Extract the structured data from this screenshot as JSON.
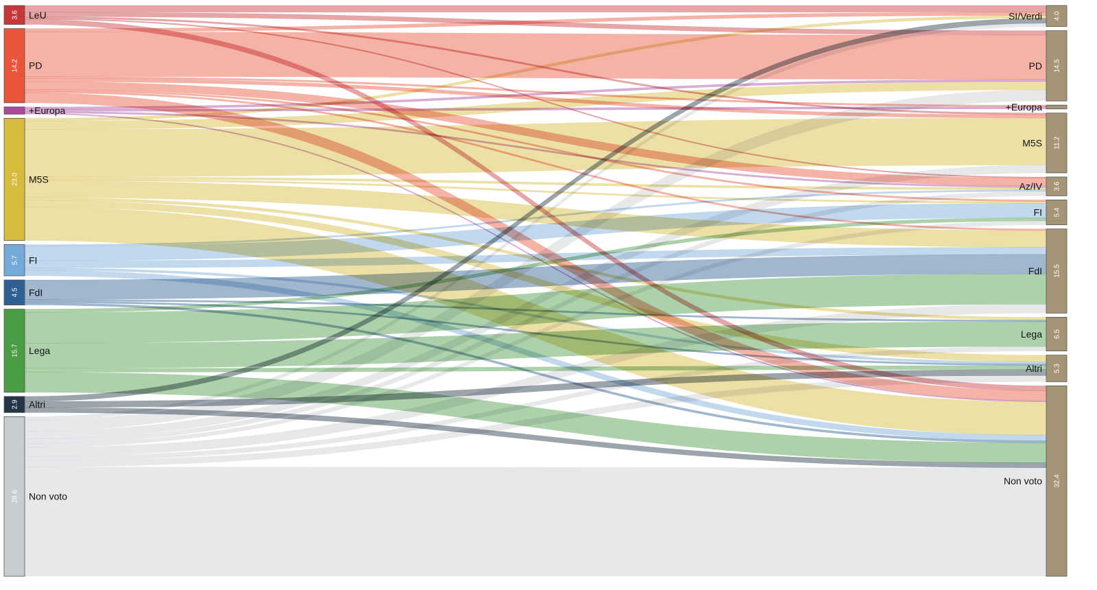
{
  "chart_data": {
    "type": "sankey",
    "left_nodes": [
      {
        "id": "LeU",
        "label": "LeU",
        "value": "3.6",
        "color": "#c8383a"
      },
      {
        "id": "PD",
        "label": "PD",
        "value": "14.2",
        "color": "#e8553a"
      },
      {
        "id": "+Europa",
        "label": "+Europa",
        "value": "",
        "color": "#a94a9e"
      },
      {
        "id": "M5S",
        "label": "M5S",
        "value": "23.0",
        "color": "#d6bb3c"
      },
      {
        "id": "FI",
        "label": "FI",
        "value": "5.7",
        "color": "#75a9d8"
      },
      {
        "id": "FdI",
        "label": "FdI",
        "value": "4.5",
        "color": "#2f5f93"
      },
      {
        "id": "Lega",
        "label": "Lega",
        "value": "15.7",
        "color": "#4a9c45"
      },
      {
        "id": "Altri",
        "label": "Altri",
        "value": "2.9",
        "color": "#233546"
      },
      {
        "id": "Non voto",
        "label": "Non voto",
        "value": "28.6",
        "color": "#c9cdd0"
      }
    ],
    "right_nodes": [
      {
        "id": "SI/Verdi",
        "label": "SI/Verdi",
        "value": "4.0",
        "color": "#a39575"
      },
      {
        "id": "PD",
        "label": "PD",
        "value": "14.5",
        "color": "#a39575"
      },
      {
        "id": "+Europa",
        "label": "+Europa",
        "value": "",
        "color": "#a39575"
      },
      {
        "id": "M5S",
        "label": "M5S",
        "value": "11.2",
        "color": "#a39575"
      },
      {
        "id": "Az/IV",
        "label": "Az/IV",
        "value": "3.6",
        "color": "#a39575"
      },
      {
        "id": "FI",
        "label": "FI",
        "value": "5.4",
        "color": "#a39575"
      },
      {
        "id": "FdI",
        "label": "FdI",
        "value": "15.5",
        "color": "#a39575"
      },
      {
        "id": "Lega",
        "label": "Lega",
        "value": "6.5",
        "color": "#a39575"
      },
      {
        "id": "Altri",
        "label": "Altri",
        "value": "5.3",
        "color": "#a39575"
      },
      {
        "id": "Non voto",
        "label": "Non voto",
        "value": "32.4",
        "color": "#a39575"
      }
    ],
    "flows": [
      {
        "from": "LeU",
        "to": "SI/Verdi",
        "value": 1.2
      },
      {
        "from": "LeU",
        "to": "PD",
        "value": 0.8
      },
      {
        "from": "LeU",
        "to": "M5S",
        "value": 0.3
      },
      {
        "from": "LeU",
        "to": "Az/IV",
        "value": 0.2
      },
      {
        "from": "LeU",
        "to": "Non voto",
        "value": 0.9
      },
      {
        "from": "PD",
        "to": "SI/Verdi",
        "value": 0.6
      },
      {
        "from": "PD",
        "to": "PD",
        "value": 8.0
      },
      {
        "from": "PD",
        "to": "+Europa",
        "value": 0.3
      },
      {
        "from": "PD",
        "to": "M5S",
        "value": 0.6
      },
      {
        "from": "PD",
        "to": "Az/IV",
        "value": 1.4
      },
      {
        "from": "PD",
        "to": "FI",
        "value": 0.3
      },
      {
        "from": "PD",
        "to": "FdI",
        "value": 0.3
      },
      {
        "from": "PD",
        "to": "Non voto",
        "value": 1.8
      },
      {
        "from": "+Europa",
        "to": "PD",
        "value": 0.4
      },
      {
        "from": "+Europa",
        "to": "+Europa",
        "value": 0.4
      },
      {
        "from": "+Europa",
        "to": "Az/IV",
        "value": 0.3
      },
      {
        "from": "+Europa",
        "to": "Non voto",
        "value": 0.2
      },
      {
        "from": "M5S",
        "to": "SI/Verdi",
        "value": 0.5
      },
      {
        "from": "M5S",
        "to": "PD",
        "value": 1.5
      },
      {
        "from": "M5S",
        "to": "M5S",
        "value": 8.5
      },
      {
        "from": "M5S",
        "to": "Az/IV",
        "value": 0.4
      },
      {
        "from": "M5S",
        "to": "FI",
        "value": 0.3
      },
      {
        "from": "M5S",
        "to": "FdI",
        "value": 3.0
      },
      {
        "from": "M5S",
        "to": "Lega",
        "value": 0.5
      },
      {
        "from": "M5S",
        "to": "Altri",
        "value": 1.2
      },
      {
        "from": "M5S",
        "to": "Non voto",
        "value": 6.0
      },
      {
        "from": "FI",
        "to": "FI",
        "value": 2.6
      },
      {
        "from": "FI",
        "to": "FdI",
        "value": 1.3
      },
      {
        "from": "FI",
        "to": "Az/IV",
        "value": 0.3
      },
      {
        "from": "FI",
        "to": "Altri",
        "value": 0.4
      },
      {
        "from": "FI",
        "to": "Non voto",
        "value": 1.0
      },
      {
        "from": "FdI",
        "to": "FdI",
        "value": 3.5
      },
      {
        "from": "FdI",
        "to": "Lega",
        "value": 0.3
      },
      {
        "from": "FdI",
        "to": "Altri",
        "value": 0.3
      },
      {
        "from": "FdI",
        "to": "Non voto",
        "value": 0.4
      },
      {
        "from": "Lega",
        "to": "FI",
        "value": 0.6
      },
      {
        "from": "Lega",
        "to": "FdI",
        "value": 5.5
      },
      {
        "from": "Lega",
        "to": "Lega",
        "value": 4.5
      },
      {
        "from": "Lega",
        "to": "Altri",
        "value": 0.7
      },
      {
        "from": "Lega",
        "to": "Non voto",
        "value": 3.6
      },
      {
        "from": "Altri",
        "to": "SI/Verdi",
        "value": 0.9
      },
      {
        "from": "Altri",
        "to": "Altri",
        "value": 1.1
      },
      {
        "from": "Altri",
        "to": "Non voto",
        "value": 0.9
      },
      {
        "from": "Non voto",
        "to": "SI/Verdi",
        "value": 0.6
      },
      {
        "from": "Non voto",
        "to": "PD",
        "value": 2.0
      },
      {
        "from": "Non voto",
        "to": "M5S",
        "value": 1.4
      },
      {
        "from": "Non voto",
        "to": "Az/IV",
        "value": 0.8
      },
      {
        "from": "Non voto",
        "to": "FI",
        "value": 0.7
      },
      {
        "from": "Non voto",
        "to": "FdI",
        "value": 1.6
      },
      {
        "from": "Non voto",
        "to": "Lega",
        "value": 0.8
      },
      {
        "from": "Non voto",
        "to": "Altri",
        "value": 1.1
      },
      {
        "from": "Non voto",
        "to": "Non voto",
        "value": 19.6
      }
    ]
  }
}
